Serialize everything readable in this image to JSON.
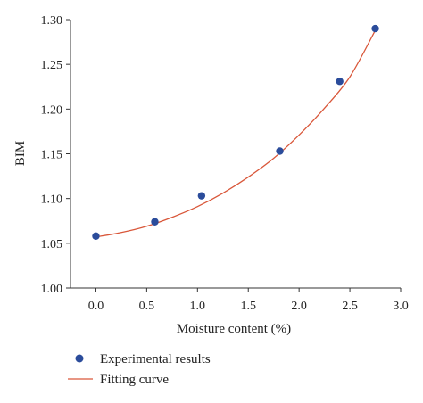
{
  "chart_data": {
    "type": "scatter",
    "title": "",
    "xlabel": "Moisture content (%)",
    "ylabel": "BIM",
    "xlim": [
      -0.25,
      3.0
    ],
    "ylim": [
      1.0,
      1.3
    ],
    "x_ticks": [
      "0.0",
      "0.5",
      "1.0",
      "1.5",
      "2.0",
      "2.5",
      "3.0"
    ],
    "y_ticks": [
      "1.00",
      "1.05",
      "1.10",
      "1.15",
      "1.20",
      "1.25",
      "1.30"
    ],
    "grid": false,
    "legend_position": "bottom",
    "series": [
      {
        "name": "Experimental results",
        "kind": "scatter",
        "color": "#2b4c9b",
        "x": [
          0.0,
          0.58,
          1.04,
          1.81,
          2.4,
          2.75
        ],
        "y": [
          1.058,
          1.074,
          1.103,
          1.153,
          1.231,
          1.29
        ]
      },
      {
        "name": "Fitting curve",
        "kind": "line",
        "color": "#d9573a",
        "x": [
          0.0,
          0.25,
          0.5,
          0.75,
          1.0,
          1.25,
          1.5,
          1.75,
          2.0,
          2.25,
          2.5,
          2.75
        ],
        "y": [
          1.057,
          1.062,
          1.069,
          1.079,
          1.091,
          1.106,
          1.124,
          1.145,
          1.171,
          1.201,
          1.236,
          1.288
        ]
      }
    ]
  }
}
